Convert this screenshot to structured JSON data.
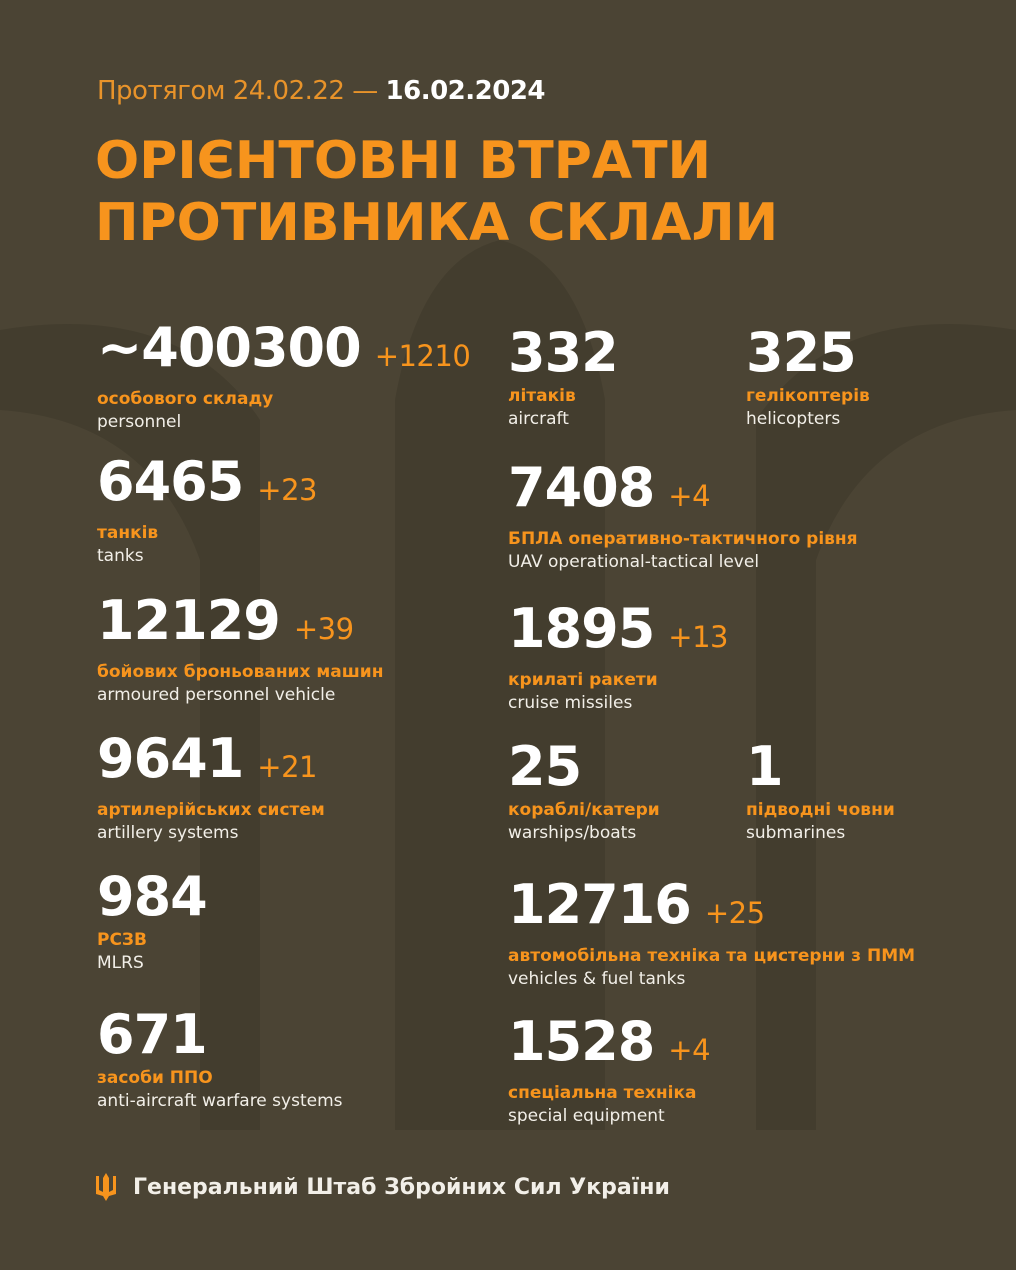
{
  "header": {
    "period_prefix": "Протягом 24.02.22 —",
    "period_date": "16.02.2024",
    "title_line1": "ОРІЄНТОВНІ ВТРАТИ",
    "title_line2": "ПРОТИВНИКА СКЛАЛИ"
  },
  "colors": {
    "background": "#4b4434",
    "accent": "#f7941d",
    "text": "#ffffff"
  },
  "stats": [
    {
      "value": "~400300",
      "delta": "+1210",
      "uk": "особового складу",
      "en": "personnel"
    },
    {
      "value": "6465",
      "delta": "+23",
      "uk": "танків",
      "en": "tanks"
    },
    {
      "value": "12129",
      "delta": "+39",
      "uk": "бойових броньованих машин",
      "en": "armoured personnel vehicle"
    },
    {
      "value": "9641",
      "delta": "+21",
      "uk": "артилерійських систем",
      "en": "artillery systems"
    },
    {
      "value": "984",
      "delta": "",
      "uk": "РСЗВ",
      "en": "MLRS"
    },
    {
      "value": "671",
      "delta": "",
      "uk": "засоби ППО",
      "en": "anti-aircraft warfare systems"
    },
    {
      "value": "332",
      "delta": "",
      "uk": "літаків",
      "en": "aircraft"
    },
    {
      "value": "325",
      "delta": "",
      "uk": "гелікоптерів",
      "en": "helicopters"
    },
    {
      "value": "7408",
      "delta": "+4",
      "uk": "БПЛА оперативно-тактичного рівня",
      "en": "UAV operational-tactical level"
    },
    {
      "value": "1895",
      "delta": "+13",
      "uk": "крилаті ракети",
      "en": "cruise missiles"
    },
    {
      "value": "25",
      "delta": "",
      "uk": "кораблі/катери",
      "en": "warships/boats"
    },
    {
      "value": "1",
      "delta": "",
      "uk": "підводні човни",
      "en": "submarines"
    },
    {
      "value": "12716",
      "delta": "+25",
      "uk": "автомобільна техніка та цистерни з ПММ",
      "en": "vehicles & fuel tanks"
    },
    {
      "value": "1528",
      "delta": "+4",
      "uk": "спеціальна техніка",
      "en": "special equipment"
    }
  ],
  "footer": {
    "icon": "trident-icon",
    "text": "Генеральний Штаб Збройних Сил України"
  }
}
